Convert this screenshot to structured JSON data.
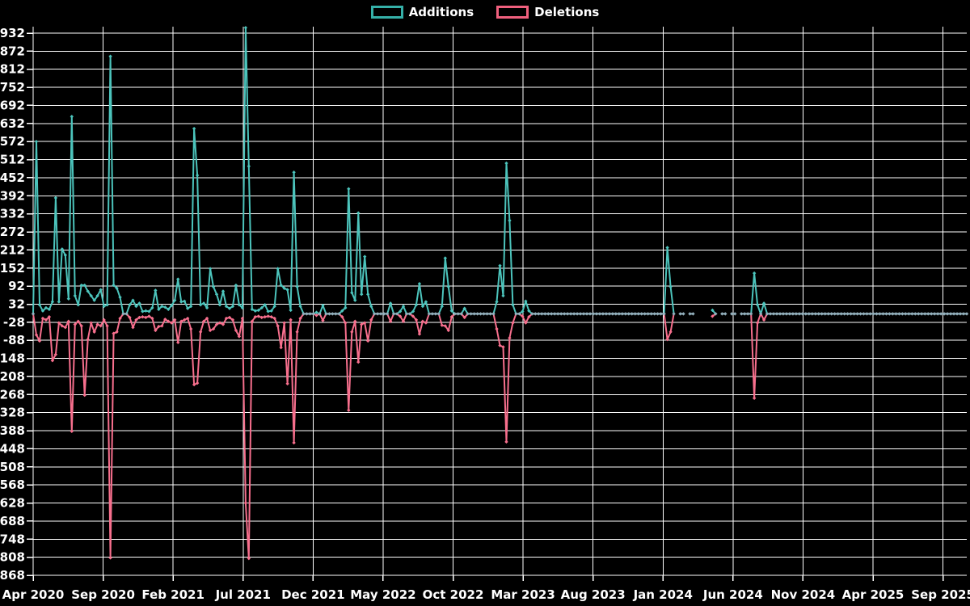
{
  "legend": {
    "items": [
      {
        "label": "Additions",
        "color": "#35b0a8"
      },
      {
        "label": "Deletions",
        "color": "#f0607e"
      }
    ]
  },
  "colors": {
    "background": "#000000",
    "grid": "#ffffff",
    "axis_text": "#ffffff",
    "additions_line": "#4cc4bc",
    "deletions_line": "#f76f8d",
    "overlap_baseline": "#93b0bd"
  },
  "chart_data": {
    "type": "line",
    "title": "",
    "xlabel": "",
    "ylabel": "",
    "grid": true,
    "legend_position": "top-center",
    "x_axis": {
      "tick_labels": [
        "Apr 2020",
        "Sep 2020",
        "Feb 2021",
        "Jul 2021",
        "Dec 2021",
        "May 2022",
        "Oct 2022",
        "Mar 2023",
        "Aug 2023",
        "Jan 2024",
        "Jun 2024",
        "Nov 2024",
        "Apr 2025",
        "Sep 2025"
      ],
      "unit": "week",
      "weeks_total": 290,
      "weeks_per_tick": 21.74
    },
    "y_axis": {
      "ticks": [
        932,
        872,
        812,
        752,
        692,
        632,
        572,
        512,
        452,
        392,
        332,
        272,
        212,
        152,
        92,
        32,
        -28,
        -88,
        -148,
        -208,
        -268,
        -328,
        -388,
        -448,
        -508,
        -568,
        -628,
        -688,
        -748,
        -808,
        -868
      ],
      "min": -868,
      "max": 932,
      "step": 60
    },
    "series": [
      {
        "name": "Additions",
        "color": "#4cc4bc",
        "sign": "positive"
      },
      {
        "name": "Deletions",
        "color": "#f76f8d",
        "sign": "negative"
      }
    ],
    "default_week_value": {
      "additions": 0,
      "deletions": 0
    },
    "gap_week_ranges": [
      [
        200,
        200
      ],
      [
        203,
        203
      ],
      [
        206,
        210
      ],
      [
        213,
        213
      ],
      [
        216,
        216
      ],
      [
        219,
        219
      ]
    ],
    "points": [
      [
        1,
        572,
        -70
      ],
      [
        2,
        30,
        -90
      ],
      [
        3,
        10,
        -15
      ],
      [
        4,
        20,
        -20
      ],
      [
        5,
        15,
        -10
      ],
      [
        6,
        40,
        -155
      ],
      [
        7,
        385,
        -135
      ],
      [
        8,
        40,
        -30
      ],
      [
        9,
        215,
        -40
      ],
      [
        10,
        195,
        -45
      ],
      [
        11,
        50,
        -25
      ],
      [
        12,
        655,
        -390
      ],
      [
        13,
        60,
        -35
      ],
      [
        14,
        30,
        -25
      ],
      [
        15,
        95,
        -40
      ],
      [
        16,
        95,
        -270
      ],
      [
        17,
        75,
        -85
      ],
      [
        18,
        60,
        -30
      ],
      [
        19,
        45,
        -60
      ],
      [
        20,
        60,
        -35
      ],
      [
        21,
        80,
        -40
      ],
      [
        22,
        25,
        -20
      ],
      [
        23,
        30,
        -40
      ],
      [
        24,
        855,
        -810
      ],
      [
        25,
        95,
        -65
      ],
      [
        26,
        85,
        -60
      ],
      [
        27,
        55,
        -15
      ],
      [
        30,
        30,
        -12
      ],
      [
        31,
        45,
        -45
      ],
      [
        32,
        25,
        -20
      ],
      [
        33,
        35,
        -12
      ],
      [
        34,
        8,
        -10
      ],
      [
        35,
        10,
        -12
      ],
      [
        36,
        8,
        -8
      ],
      [
        37,
        20,
        -15
      ],
      [
        38,
        78,
        -55
      ],
      [
        39,
        15,
        -42
      ],
      [
        40,
        25,
        -40
      ],
      [
        41,
        22,
        -18
      ],
      [
        42,
        15,
        -25
      ],
      [
        43,
        28,
        -30
      ],
      [
        44,
        45,
        -20
      ],
      [
        45,
        115,
        -95
      ],
      [
        46,
        40,
        -25
      ],
      [
        47,
        42,
        -20
      ],
      [
        48,
        18,
        -15
      ],
      [
        49,
        25,
        -50
      ],
      [
        50,
        615,
        -235
      ],
      [
        51,
        460,
        -230
      ],
      [
        52,
        30,
        -60
      ],
      [
        53,
        35,
        -25
      ],
      [
        54,
        20,
        -15
      ],
      [
        55,
        150,
        -55
      ],
      [
        56,
        90,
        -50
      ],
      [
        57,
        65,
        -35
      ],
      [
        58,
        30,
        -30
      ],
      [
        59,
        75,
        -35
      ],
      [
        60,
        25,
        -15
      ],
      [
        61,
        18,
        -12
      ],
      [
        62,
        25,
        -20
      ],
      [
        63,
        95,
        -55
      ],
      [
        64,
        30,
        -75
      ],
      [
        65,
        20,
        -15
      ],
      [
        66,
        950,
        -628
      ],
      [
        67,
        490,
        -812
      ],
      [
        68,
        15,
        -25
      ],
      [
        69,
        10,
        -10
      ],
      [
        70,
        12,
        -8
      ],
      [
        71,
        20,
        -12
      ],
      [
        72,
        30,
        -10
      ],
      [
        73,
        8,
        -8
      ],
      [
        74,
        10,
        -10
      ],
      [
        75,
        25,
        -15
      ],
      [
        76,
        150,
        -40
      ],
      [
        77,
        95,
        -112
      ],
      [
        78,
        85,
        -30
      ],
      [
        79,
        80,
        -232
      ],
      [
        80,
        12,
        -20
      ],
      [
        81,
        470,
        -428
      ],
      [
        82,
        90,
        -60
      ],
      [
        83,
        25,
        -15
      ],
      [
        88,
        5,
        -5
      ],
      [
        90,
        28,
        -22
      ],
      [
        96,
        10,
        -10
      ],
      [
        97,
        20,
        -30
      ],
      [
        98,
        415,
        -320
      ],
      [
        99,
        70,
        -60
      ],
      [
        100,
        45,
        -25
      ],
      [
        101,
        335,
        -160
      ],
      [
        102,
        65,
        -35
      ],
      [
        103,
        190,
        -30
      ],
      [
        104,
        65,
        -90
      ],
      [
        105,
        25,
        -20
      ],
      [
        111,
        35,
        -25
      ],
      [
        114,
        8,
        -8
      ],
      [
        115,
        25,
        -25
      ],
      [
        118,
        8,
        -8
      ],
      [
        119,
        30,
        -20
      ],
      [
        120,
        100,
        -67
      ],
      [
        121,
        25,
        -25
      ],
      [
        122,
        40,
        -30
      ],
      [
        127,
        25,
        -38
      ],
      [
        128,
        185,
        -40
      ],
      [
        129,
        90,
        -55
      ],
      [
        130,
        10,
        -10
      ],
      [
        134,
        18,
        -12
      ],
      [
        144,
        40,
        -50
      ],
      [
        145,
        160,
        -105
      ],
      [
        146,
        60,
        -110
      ],
      [
        147,
        500,
        -425
      ],
      [
        148,
        310,
        -80
      ],
      [
        149,
        30,
        -30
      ],
      [
        152,
        8,
        -8
      ],
      [
        153,
        42,
        -30
      ],
      [
        154,
        10,
        -10
      ],
      [
        197,
        220,
        -85
      ],
      [
        198,
        90,
        -60
      ],
      [
        211,
        12,
        -8
      ],
      [
        224,
        135,
        -280
      ],
      [
        225,
        30,
        -30
      ],
      [
        227,
        35,
        -20
      ]
    ]
  }
}
